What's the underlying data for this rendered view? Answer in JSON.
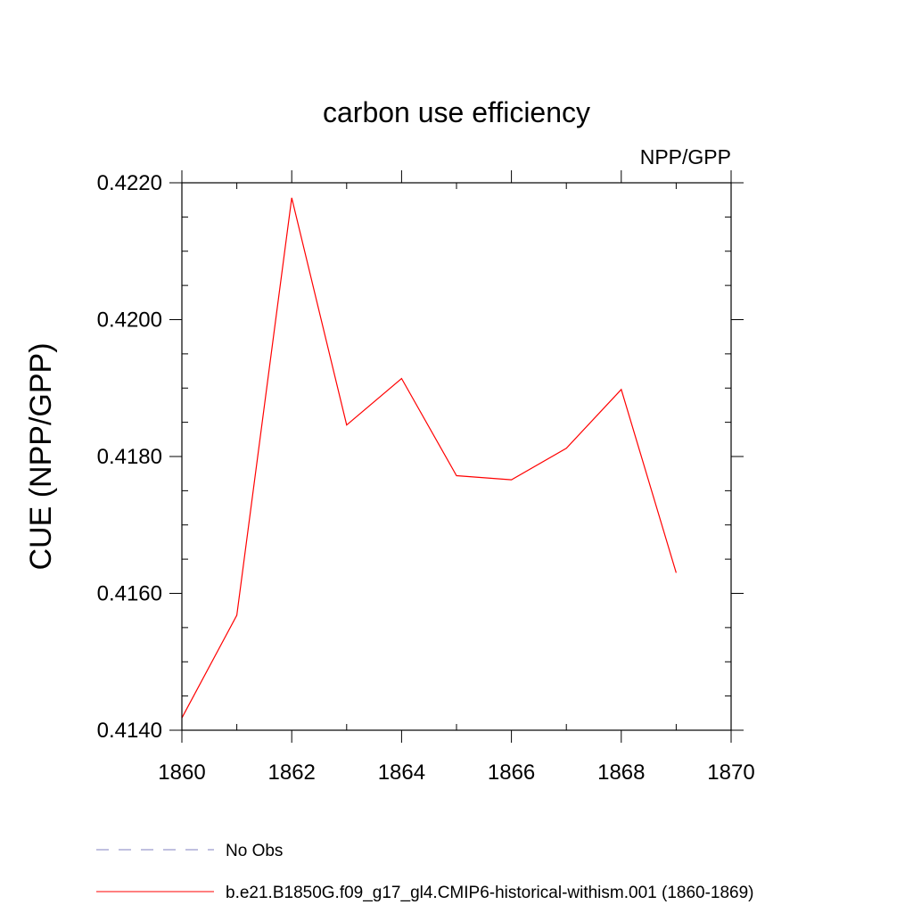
{
  "chart_data": {
    "type": "line",
    "title": "carbon use efficiency",
    "units_label": "NPP/GPP",
    "xlabel": "",
    "ylabel": "CUE  (NPP/GPP)",
    "xlim": [
      1860,
      1870
    ],
    "ylim": [
      0.414,
      0.422
    ],
    "x_ticks": [
      1860,
      1862,
      1864,
      1866,
      1868,
      1870
    ],
    "x_tick_labels": [
      "1860",
      "1862",
      "1864",
      "1866",
      "1868",
      "1870"
    ],
    "y_ticks": [
      0.414,
      0.416,
      0.418,
      0.42,
      0.422
    ],
    "y_tick_labels": [
      "0.4140",
      "0.4160",
      "0.4180",
      "0.4200",
      "0.4220"
    ],
    "y_minor_step": 0.0005,
    "x_minor_step": 1,
    "grid": false,
    "legend_position": "bottom",
    "series": [
      {
        "name": "b.e21.B1850G.f09_g17_gl4.CMIP6-historical-withism.001 (1860-1869)",
        "color": "#ff0000",
        "dash": "solid",
        "x": [
          1860,
          1861,
          1862,
          1863,
          1864,
          1865,
          1866,
          1867,
          1868,
          1869
        ],
        "y": [
          0.41418,
          0.41568,
          0.42178,
          0.41846,
          0.41914,
          0.41772,
          0.41766,
          0.41812,
          0.41898,
          0.4163
        ]
      }
    ],
    "legend": [
      {
        "label": "No Obs",
        "color": "#8080c0",
        "dash": "dashed"
      },
      {
        "label": "b.e21.B1850G.f09_g17_gl4.CMIP6-historical-withism.001 (1860-1869)",
        "color": "#ff0000",
        "dash": "solid"
      }
    ]
  }
}
